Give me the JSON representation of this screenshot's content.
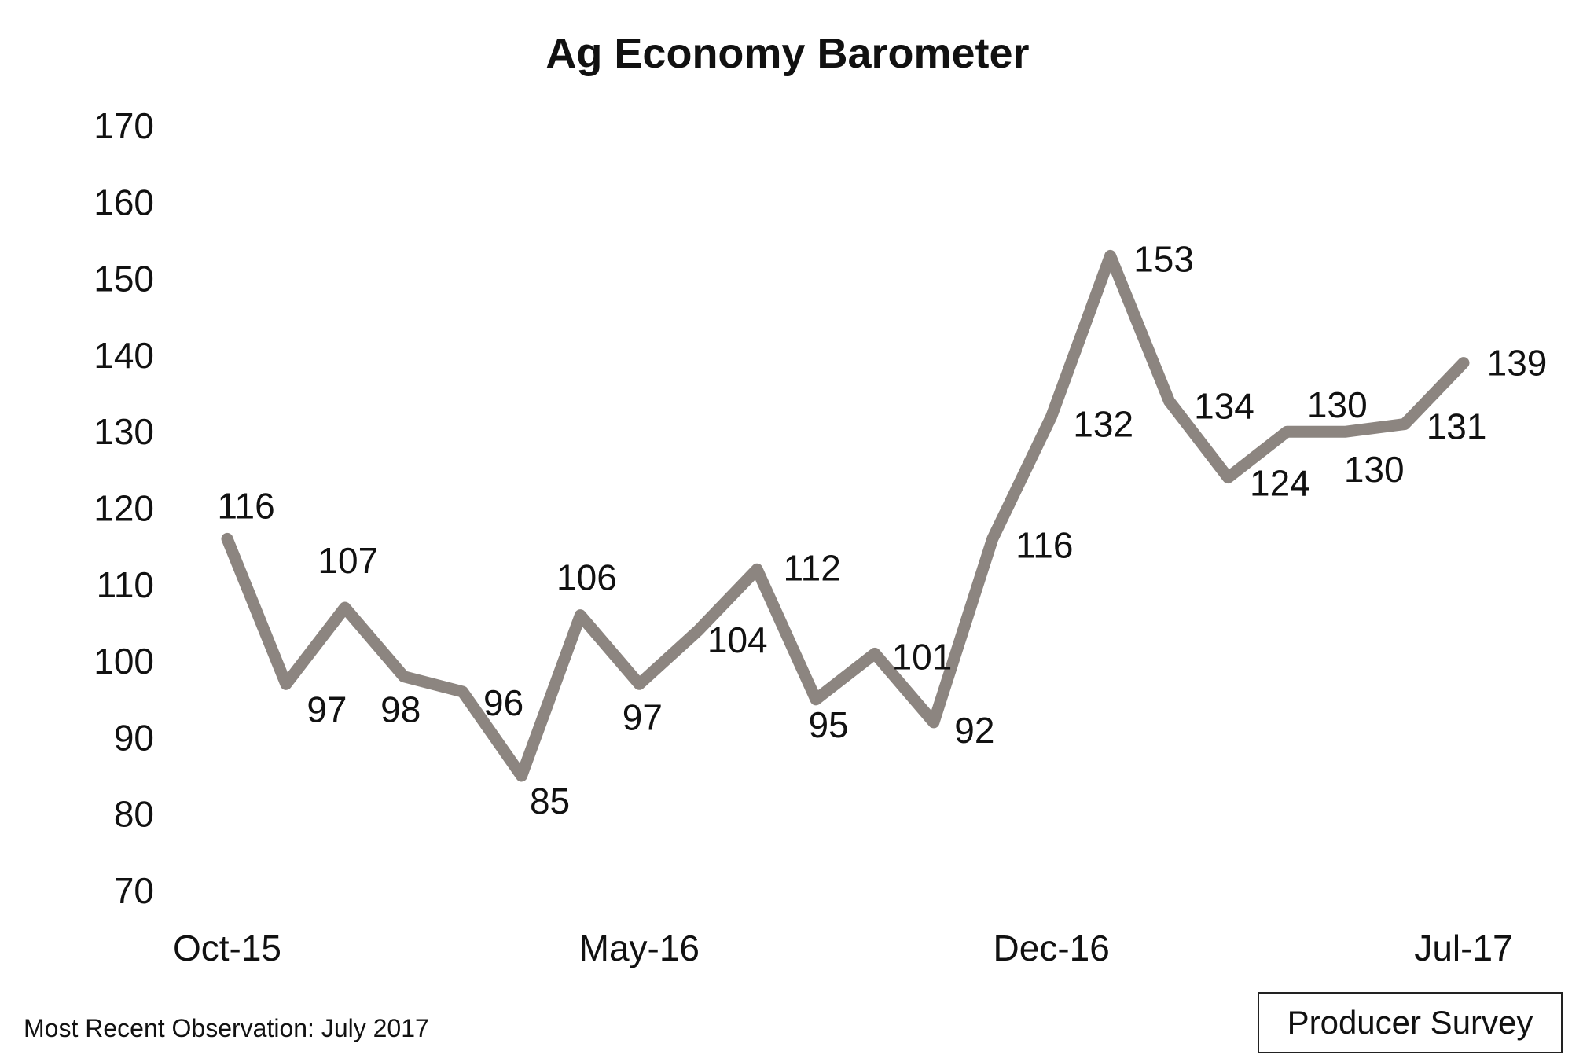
{
  "chart_data": {
    "type": "line",
    "title": "Ag Economy Barometer",
    "xlabel": "",
    "ylabel": "",
    "ylim": [
      70,
      170
    ],
    "yticks": [
      70,
      80,
      90,
      100,
      110,
      120,
      130,
      140,
      150,
      160,
      170
    ],
    "x_tick_labels": [
      "Oct-15",
      "May-16",
      "Dec-16",
      "Jul-17"
    ],
    "x_tick_indices": [
      0,
      7,
      14,
      21
    ],
    "grid": false,
    "legend": "none",
    "line_color": "#8c8580",
    "series": [
      {
        "values": [
          116,
          97,
          107,
          98,
          96,
          85,
          106,
          97,
          104,
          112,
          95,
          101,
          92,
          116,
          132,
          153,
          134,
          124,
          130,
          130,
          131,
          139
        ],
        "data_labels": [
          "116",
          "97",
          "107",
          "98",
          "96",
          "85",
          "106",
          "97",
          "104",
          "112",
          "95",
          "101",
          "92",
          "116",
          "132",
          "153",
          "134",
          "124",
          "130",
          "130",
          "131",
          "139"
        ]
      }
    ]
  },
  "footnote": "Most Recent Observation: July 2017",
  "source_box": "Producer Survey"
}
